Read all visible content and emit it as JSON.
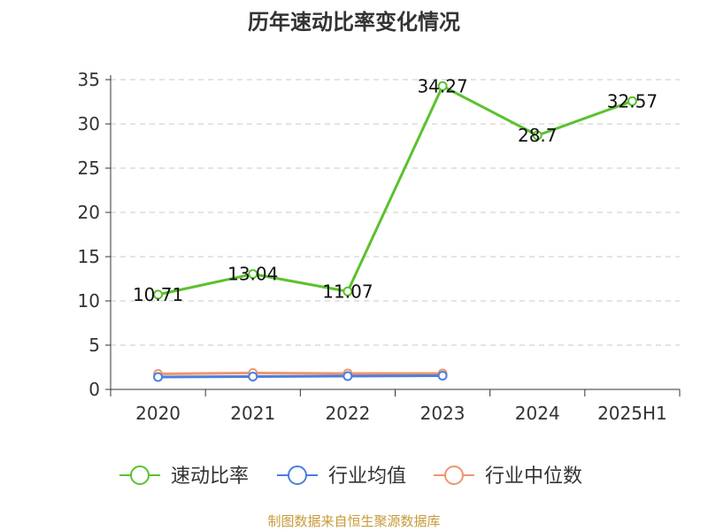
{
  "chart_data": {
    "type": "line",
    "title": "历年速动比率变化情况",
    "categories": [
      "2020",
      "2021",
      "2022",
      "2023",
      "2024",
      "2025H1"
    ],
    "ylim": [
      0,
      35
    ],
    "yticks": [
      0,
      5,
      10,
      15,
      20,
      25,
      30,
      35
    ],
    "grid": "horizontal-dashed",
    "legend_position": "bottom",
    "series": [
      {
        "name": "速动比率",
        "color": "#5cc12e",
        "values": [
          10.71,
          13.04,
          11.07,
          34.27,
          28.7,
          32.57
        ],
        "show_labels": true
      },
      {
        "name": "行业均值",
        "color": "#4a7ee0",
        "values": [
          1.4,
          1.45,
          1.5,
          1.55,
          null,
          null
        ],
        "show_labels": false
      },
      {
        "name": "行业中位数",
        "color": "#f0956a",
        "values": [
          1.75,
          1.85,
          1.8,
          1.8,
          null,
          null
        ],
        "show_labels": false
      }
    ],
    "data_labels": [
      "10.71",
      "13.04",
      "11.07",
      "34.27",
      "28.7",
      "32.57"
    ]
  },
  "source_note": "制图数据来自恒生聚源数据库"
}
